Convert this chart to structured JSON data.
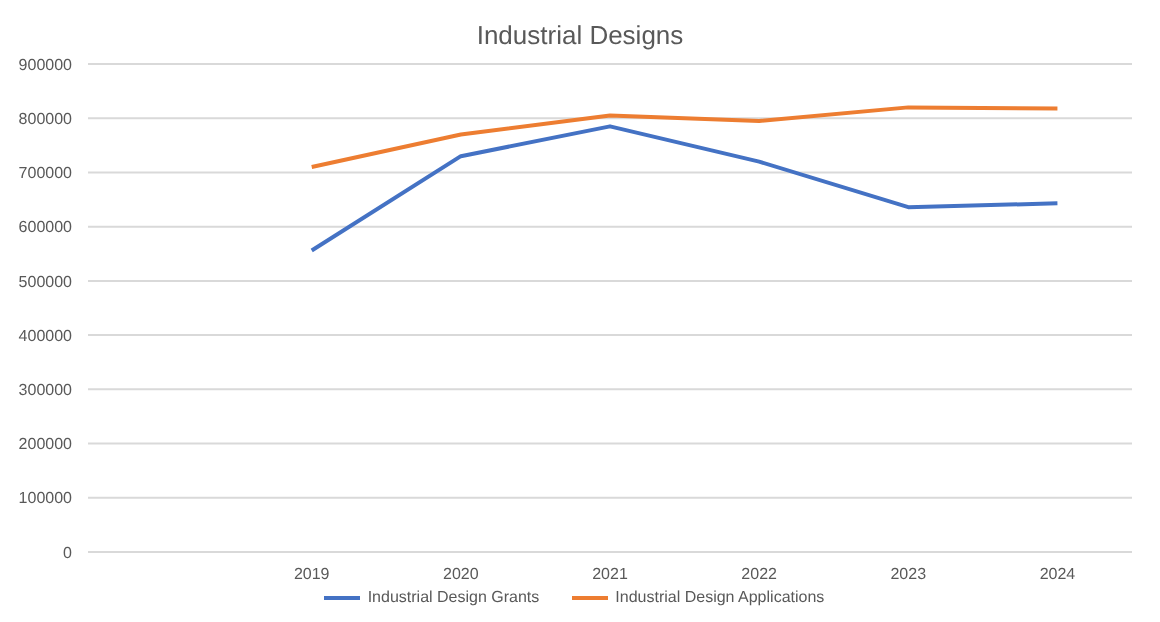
{
  "chart_data": {
    "type": "line",
    "title": "Industrial Designs",
    "categories": [
      null,
      "2019",
      "2020",
      "2021",
      "2022",
      "2023",
      "2024"
    ],
    "series": [
      {
        "name": "Industrial Design Grants",
        "color": "#4472c4",
        "values": [
          null,
          556000,
          730000,
          785000,
          720000,
          636000,
          643000
        ]
      },
      {
        "name": "Industrial Design Applications",
        "color": "#ed7d31",
        "values": [
          null,
          710000,
          770000,
          805000,
          795000,
          820000,
          818000
        ]
      }
    ],
    "ylim": [
      0,
      900000
    ],
    "yticks": [
      0,
      100000,
      200000,
      300000,
      400000,
      500000,
      600000,
      700000,
      800000,
      900000
    ],
    "grid": "y",
    "legend": "bottom",
    "marker": "none",
    "line_style": "solid"
  }
}
